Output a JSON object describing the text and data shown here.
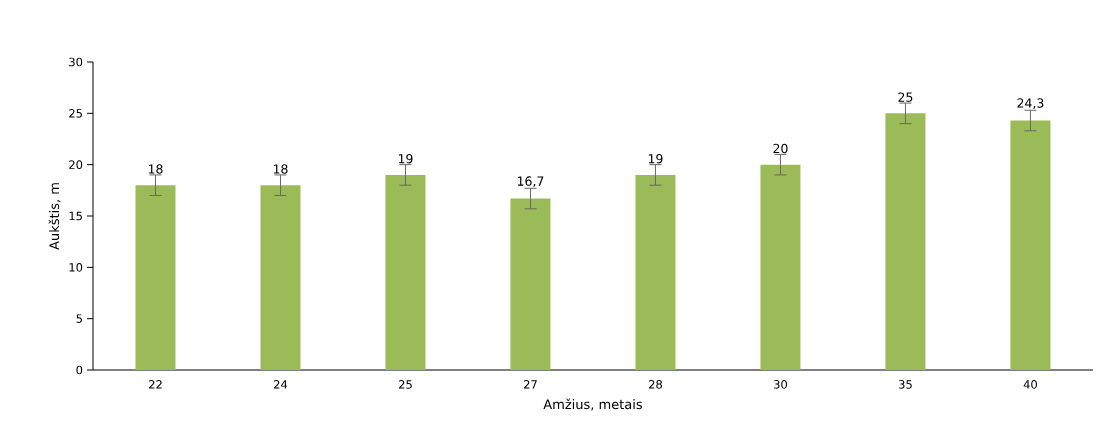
{
  "chart_data": {
    "type": "bar",
    "xlabel": "Amžius, metais",
    "ylabel": "Aukštis, m",
    "categories": [
      "22",
      "24",
      "25",
      "27",
      "28",
      "30",
      "35",
      "40"
    ],
    "values": [
      18,
      18,
      19,
      16.7,
      19,
      20,
      25,
      24.3
    ],
    "errors": [
      1,
      1,
      1,
      1,
      1,
      1,
      1,
      1
    ],
    "value_labels": [
      "18",
      "18",
      "19",
      "16,7",
      "19",
      "20",
      "25",
      "24,3"
    ],
    "color": "#9bbb59",
    "ylim": [
      0,
      30
    ],
    "yticks": [
      0,
      5,
      10,
      15,
      20,
      25,
      30
    ],
    "grid": false
  }
}
